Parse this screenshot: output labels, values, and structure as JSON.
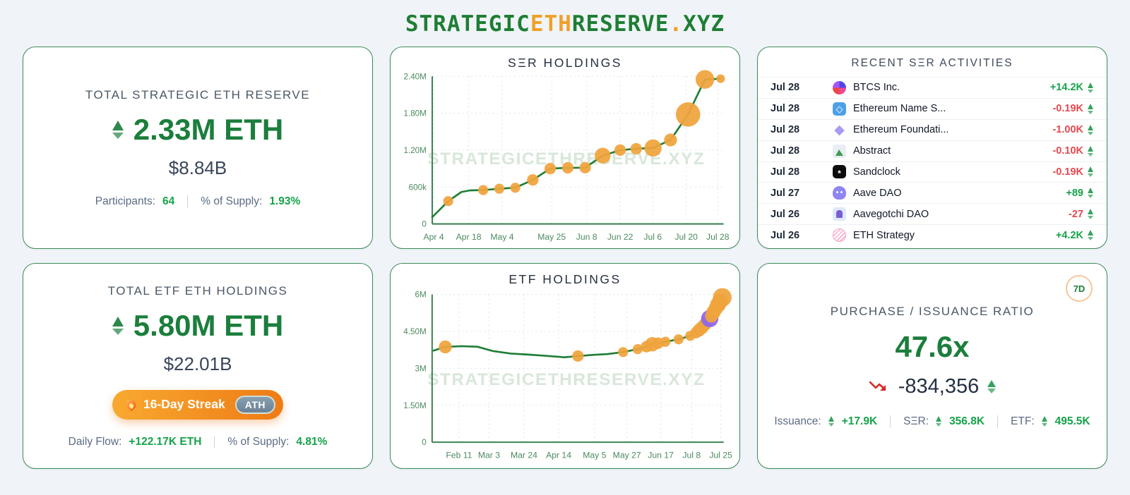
{
  "header": {
    "segments": [
      {
        "t": "STRATEGIC"
      },
      {
        "t": "ETH"
      },
      {
        "t": "RESERVE"
      },
      {
        "t": "."
      },
      {
        "t": "XYZ"
      }
    ]
  },
  "colors": {
    "brand_green": "#1e7e34",
    "brand_orange": "#f0a029",
    "value_green": "#16a34a",
    "value_red": "#e5484d",
    "marker_orange": "#f0a43c",
    "marker_purple": "#8b66f0",
    "card_border": "#3d8b57",
    "watermark": "#d8e7da"
  },
  "cards": {
    "ser_total": {
      "title": "TOTAL STRATEGIC ETH RESERVE",
      "value": "2.33M ETH",
      "usd": "$8.84B",
      "participants_label": "Participants:",
      "participants": "64",
      "supply_label": "% of Supply:",
      "supply": "1.93%"
    },
    "activities": {
      "title": "RECENT SΞR ACTIVITIES",
      "rows": [
        {
          "date": "Jul 28",
          "icon": "btcs",
          "name": "BTCS Inc.",
          "value": "+14.2K",
          "dir": "up"
        },
        {
          "date": "Jul 28",
          "icon": "ens",
          "name": "Ethereum Name S...",
          "value": "-0.19K",
          "dir": "down"
        },
        {
          "date": "Jul 28",
          "icon": "ef",
          "name": "Ethereum Foundati...",
          "value": "-1.00K",
          "dir": "down"
        },
        {
          "date": "Jul 28",
          "icon": "abstract",
          "name": "Abstract",
          "value": "-0.10K",
          "dir": "down"
        },
        {
          "date": "Jul 28",
          "icon": "sandclock",
          "name": "Sandclock",
          "value": "-0.19K",
          "dir": "down"
        },
        {
          "date": "Jul 27",
          "icon": "aave",
          "name": "Aave DAO",
          "value": "+89",
          "dir": "up"
        },
        {
          "date": "Jul 26",
          "icon": "aavegotchi",
          "name": "Aavegotchi DAO",
          "value": "-27",
          "dir": "down"
        },
        {
          "date": "Jul 26",
          "icon": "ethstrategy",
          "name": "ETH Strategy",
          "value": "+4.2K",
          "dir": "up"
        }
      ]
    },
    "etf_total": {
      "title": "TOTAL ETF ETH HOLDINGS",
      "value": "5.80M ETH",
      "usd": "$22.01B",
      "streak": "16-Day Streak",
      "streak_badge": "ATH",
      "flow_label": "Daily Flow:",
      "flow": "+122.17K ETH",
      "supply_label": "% of Supply:",
      "supply": "4.81%"
    },
    "ratio": {
      "badge": "7D",
      "title": "PURCHASE / ISSUANCE RATIO",
      "value": "47.6x",
      "delta": "-834,356",
      "issuance_label": "Issuance:",
      "issuance": "+17.9K",
      "ser_label": "SΞR:",
      "ser": "356.8K",
      "etf_label": "ETF:",
      "etf": "495.5K"
    }
  },
  "chart_data": [
    {
      "type": "line",
      "title": "SΞR HOLDINGS",
      "watermark": "STRATEGICETHRESERVE.XYZ",
      "ymax": 2400,
      "wm_v": 1060,
      "line_color": "#1e7e34",
      "marker_color": "#f0a43c",
      "y_ticks": [
        {
          "v": 0,
          "label": "0"
        },
        {
          "v": 600,
          "label": "600k"
        },
        {
          "v": 1200,
          "label": "1.20M"
        },
        {
          "v": 1800,
          "label": "1.80M"
        },
        {
          "v": 2400,
          "label": "2.40M"
        }
      ],
      "x_ticks": [
        {
          "f": 0.005,
          "label": "Apr 4"
        },
        {
          "f": 0.125,
          "label": "Apr 18"
        },
        {
          "f": 0.24,
          "label": "May 4"
        },
        {
          "f": 0.41,
          "label": "May 25"
        },
        {
          "f": 0.53,
          "label": "Jun 8"
        },
        {
          "f": 0.645,
          "label": "Jun 22"
        },
        {
          "f": 0.757,
          "label": "Jul 6"
        },
        {
          "f": 0.872,
          "label": "Jul 20"
        },
        {
          "f": 0.98,
          "label": "Jul 28"
        }
      ],
      "points": [
        {
          "f": 0.0,
          "v": 110,
          "r": 0
        },
        {
          "f": 0.055,
          "v": 370,
          "r": 7
        },
        {
          "f": 0.1,
          "v": 520,
          "r": 0
        },
        {
          "f": 0.13,
          "v": 545,
          "r": 0
        },
        {
          "f": 0.175,
          "v": 550,
          "r": 7
        },
        {
          "f": 0.23,
          "v": 572,
          "r": 7
        },
        {
          "f": 0.285,
          "v": 588,
          "r": 7
        },
        {
          "f": 0.345,
          "v": 715,
          "r": 8
        },
        {
          "f": 0.405,
          "v": 900,
          "r": 8
        },
        {
          "f": 0.465,
          "v": 912,
          "r": 8
        },
        {
          "f": 0.525,
          "v": 915,
          "r": 8
        },
        {
          "f": 0.585,
          "v": 1110,
          "r": 11
        },
        {
          "f": 0.645,
          "v": 1200,
          "r": 8
        },
        {
          "f": 0.7,
          "v": 1222,
          "r": 8
        },
        {
          "f": 0.758,
          "v": 1235,
          "r": 12
        },
        {
          "f": 0.818,
          "v": 1365,
          "r": 9
        },
        {
          "f": 0.878,
          "v": 1780,
          "r": 17
        },
        {
          "f": 0.936,
          "v": 2350,
          "r": 13
        },
        {
          "f": 0.99,
          "v": 2362,
          "r": 6
        }
      ]
    },
    {
      "type": "line",
      "title": "ETF HOLDINGS",
      "watermark": "STRATEGICETHRESERVE.XYZ",
      "ymax": 6,
      "wm_v": 2.55,
      "line_color": "#1e7e34",
      "marker_color": "#f0a43c",
      "y_ticks": [
        {
          "v": 0,
          "label": "0"
        },
        {
          "v": 1.5,
          "label": "1.50M"
        },
        {
          "v": 3,
          "label": "3M"
        },
        {
          "v": 4.5,
          "label": "4.50M"
        },
        {
          "v": 6,
          "label": "6M"
        }
      ],
      "x_ticks": [
        {
          "f": 0.092,
          "label": "Feb 11"
        },
        {
          "f": 0.195,
          "label": "Mar 3"
        },
        {
          "f": 0.315,
          "label": "Mar 24"
        },
        {
          "f": 0.434,
          "label": "Apr 14"
        },
        {
          "f": 0.557,
          "label": "May 5"
        },
        {
          "f": 0.668,
          "label": "May 27"
        },
        {
          "f": 0.784,
          "label": "Jun 17"
        },
        {
          "f": 0.89,
          "label": "Jul 8"
        },
        {
          "f": 0.99,
          "label": "Jul 25"
        }
      ],
      "points": [
        {
          "f": 0.005,
          "v": 3.72,
          "r": 0
        },
        {
          "f": 0.045,
          "v": 3.87,
          "r": 9
        },
        {
          "f": 0.1,
          "v": 3.9,
          "r": 0
        },
        {
          "f": 0.155,
          "v": 3.88,
          "r": 0
        },
        {
          "f": 0.21,
          "v": 3.7,
          "r": 0
        },
        {
          "f": 0.27,
          "v": 3.6,
          "r": 0
        },
        {
          "f": 0.33,
          "v": 3.56,
          "r": 0
        },
        {
          "f": 0.4,
          "v": 3.5,
          "r": 0
        },
        {
          "f": 0.455,
          "v": 3.45,
          "r": 0
        },
        {
          "f": 0.5,
          "v": 3.5,
          "r": 8
        },
        {
          "f": 0.555,
          "v": 3.55,
          "r": 0
        },
        {
          "f": 0.6,
          "v": 3.58,
          "r": 0
        },
        {
          "f": 0.655,
          "v": 3.66,
          "r": 7
        },
        {
          "f": 0.705,
          "v": 3.78,
          "r": 7
        },
        {
          "f": 0.735,
          "v": 3.88,
          "r": 8
        },
        {
          "f": 0.755,
          "v": 3.98,
          "r": 10
        },
        {
          "f": 0.775,
          "v": 4.02,
          "r": 8
        },
        {
          "f": 0.8,
          "v": 4.08,
          "r": 7
        },
        {
          "f": 0.845,
          "v": 4.18,
          "r": 7
        },
        {
          "f": 0.885,
          "v": 4.32,
          "r": 7
        },
        {
          "f": 0.905,
          "v": 4.45,
          "r": 8
        },
        {
          "f": 0.915,
          "v": 4.55,
          "r": 9
        },
        {
          "f": 0.925,
          "v": 4.65,
          "r": 9
        },
        {
          "f": 0.935,
          "v": 4.78,
          "r": 9
        },
        {
          "f": 0.945,
          "v": 4.92,
          "r": 9
        },
        {
          "f": 0.952,
          "v": 5.02,
          "r": 12,
          "c": "#8b66f0"
        },
        {
          "f": 0.958,
          "v": 5.12,
          "r": 9
        },
        {
          "f": 0.965,
          "v": 5.28,
          "r": 10
        },
        {
          "f": 0.972,
          "v": 5.42,
          "r": 10
        },
        {
          "f": 0.98,
          "v": 5.58,
          "r": 11
        },
        {
          "f": 0.987,
          "v": 5.72,
          "r": 11
        },
        {
          "f": 0.995,
          "v": 5.88,
          "r": 13
        }
      ]
    }
  ]
}
